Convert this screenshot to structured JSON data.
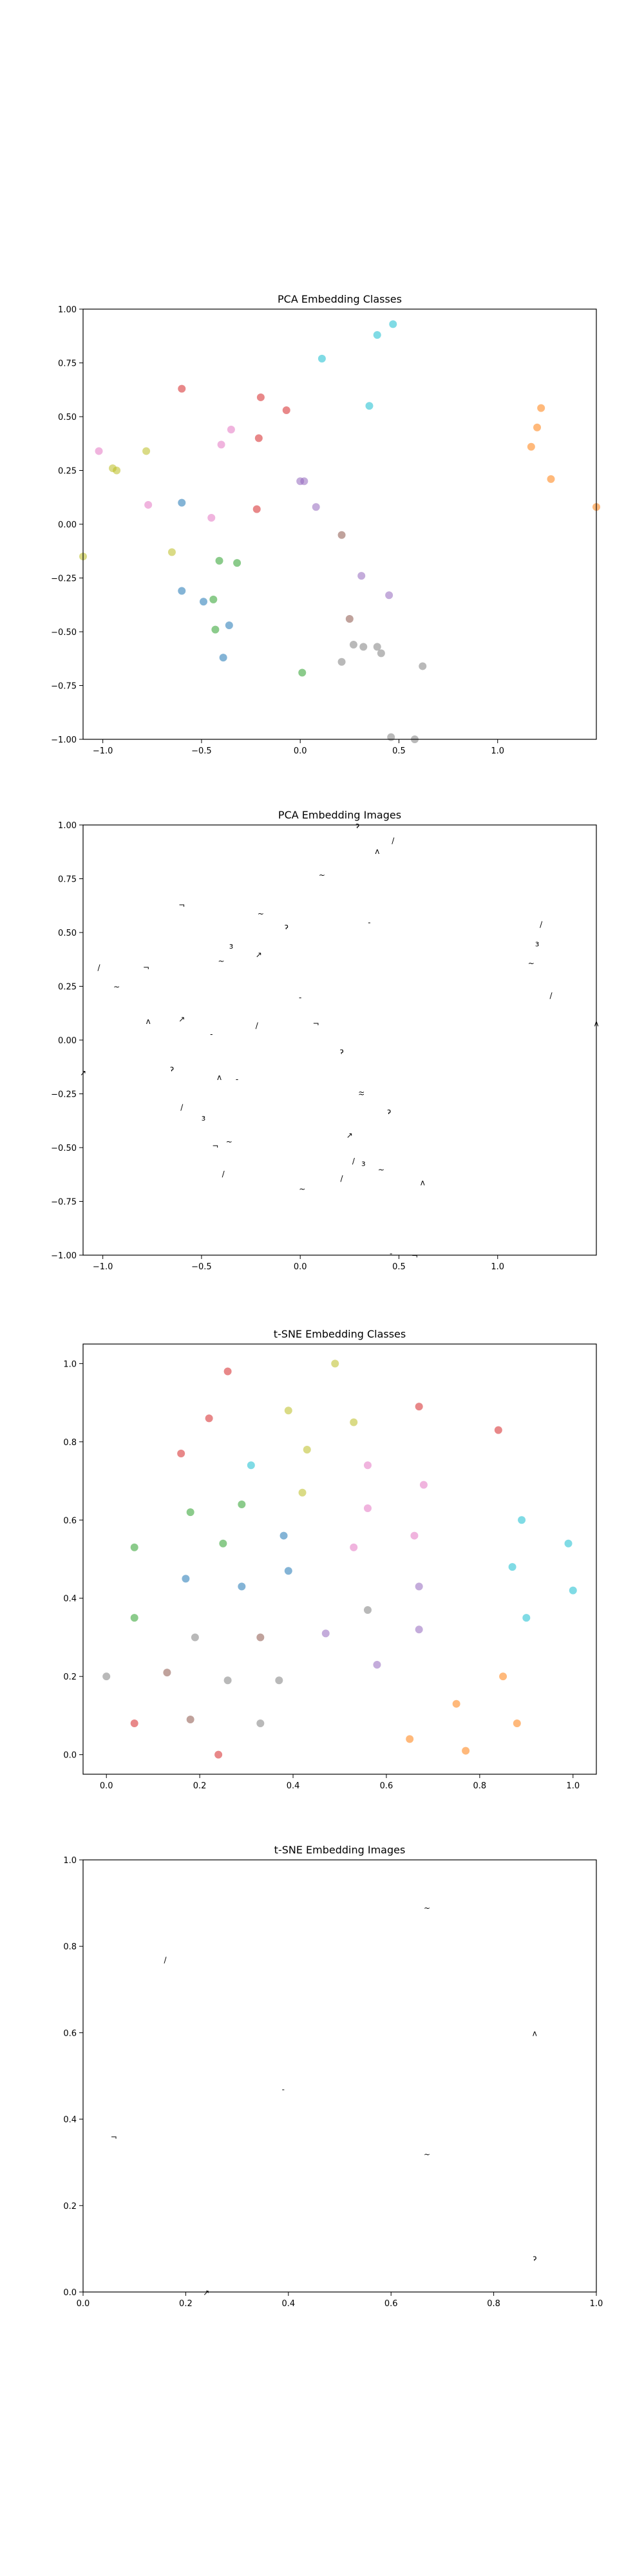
{
  "chart_data": [
    {
      "type": "scatter",
      "title": "PCA Embedding Classes",
      "xlim": [
        -1.1,
        1.5
      ],
      "ylim": [
        -1.0,
        1.0
      ],
      "xticks": [
        -1.0,
        -0.5,
        0.0,
        0.5,
        1.0
      ],
      "yticks": [
        -1.0,
        -0.75,
        -0.5,
        -0.25,
        0.0,
        0.25,
        0.5,
        0.75,
        1.0
      ],
      "tick_labels_x": [
        "−1.0",
        "−0.5",
        "0.0",
        "0.5",
        "1.0"
      ],
      "tick_labels_y": [
        "−1.00",
        "−0.75",
        "−0.50",
        "−0.25",
        "0.00",
        "0.25",
        "0.50",
        "0.75",
        "1.00"
      ],
      "points": [
        {
          "x": 0.11,
          "y": 0.77,
          "c": "#17becf"
        },
        {
          "x": 0.47,
          "y": 0.93,
          "c": "#17becf"
        },
        {
          "x": 0.39,
          "y": 0.88,
          "c": "#17becf"
        },
        {
          "x": 0.35,
          "y": 0.55,
          "c": "#17becf"
        },
        {
          "x": -0.6,
          "y": 0.63,
          "c": "#d62728"
        },
        {
          "x": -0.2,
          "y": 0.59,
          "c": "#d62728"
        },
        {
          "x": -0.07,
          "y": 0.53,
          "c": "#d62728"
        },
        {
          "x": -0.21,
          "y": 0.4,
          "c": "#d62728"
        },
        {
          "x": -0.22,
          "y": 0.07,
          "c": "#d62728"
        },
        {
          "x": -0.35,
          "y": 0.44,
          "c": "#e377c2"
        },
        {
          "x": -0.4,
          "y": 0.37,
          "c": "#e377c2"
        },
        {
          "x": -1.02,
          "y": 0.34,
          "c": "#e377c2"
        },
        {
          "x": -0.77,
          "y": 0.09,
          "c": "#e377c2"
        },
        {
          "x": -0.45,
          "y": 0.03,
          "c": "#e377c2"
        },
        {
          "x": -0.78,
          "y": 0.34,
          "c": "#bcbd22"
        },
        {
          "x": -0.95,
          "y": 0.26,
          "c": "#bcbd22"
        },
        {
          "x": -0.93,
          "y": 0.25,
          "c": "#bcbd22"
        },
        {
          "x": -0.65,
          "y": -0.13,
          "c": "#bcbd22"
        },
        {
          "x": -1.1,
          "y": -0.15,
          "c": "#bcbd22"
        },
        {
          "x": 1.22,
          "y": 0.54,
          "c": "#ff7f0e"
        },
        {
          "x": 1.2,
          "y": 0.45,
          "c": "#ff7f0e"
        },
        {
          "x": 1.17,
          "y": 0.36,
          "c": "#ff7f0e"
        },
        {
          "x": 1.27,
          "y": 0.21,
          "c": "#ff7f0e"
        },
        {
          "x": 1.5,
          "y": 0.08,
          "c": "#ff7f0e"
        },
        {
          "x": 0.0,
          "y": 0.2,
          "c": "#9467bd"
        },
        {
          "x": 0.02,
          "y": 0.2,
          "c": "#9467bd"
        },
        {
          "x": 0.08,
          "y": 0.08,
          "c": "#9467bd"
        },
        {
          "x": 0.31,
          "y": -0.24,
          "c": "#9467bd"
        },
        {
          "x": 0.45,
          "y": -0.33,
          "c": "#9467bd"
        },
        {
          "x": -0.6,
          "y": 0.1,
          "c": "#1f77b4"
        },
        {
          "x": -0.6,
          "y": -0.31,
          "c": "#1f77b4"
        },
        {
          "x": -0.49,
          "y": -0.36,
          "c": "#1f77b4"
        },
        {
          "x": -0.36,
          "y": -0.47,
          "c": "#1f77b4"
        },
        {
          "x": -0.39,
          "y": -0.62,
          "c": "#1f77b4"
        },
        {
          "x": -0.41,
          "y": -0.17,
          "c": "#2ca02c"
        },
        {
          "x": -0.32,
          "y": -0.18,
          "c": "#2ca02c"
        },
        {
          "x": -0.44,
          "y": -0.35,
          "c": "#2ca02c"
        },
        {
          "x": -0.43,
          "y": -0.49,
          "c": "#2ca02c"
        },
        {
          "x": 0.01,
          "y": -0.69,
          "c": "#2ca02c"
        },
        {
          "x": 0.21,
          "y": -0.05,
          "c": "#8c564b"
        },
        {
          "x": 0.25,
          "y": -0.44,
          "c": "#8c564b"
        },
        {
          "x": 0.27,
          "y": -0.56,
          "c": "#7f7f7f"
        },
        {
          "x": 0.32,
          "y": -0.57,
          "c": "#7f7f7f"
        },
        {
          "x": 0.39,
          "y": -0.57,
          "c": "#7f7f7f"
        },
        {
          "x": 0.41,
          "y": -0.6,
          "c": "#7f7f7f"
        },
        {
          "x": 0.21,
          "y": -0.64,
          "c": "#7f7f7f"
        },
        {
          "x": 0.62,
          "y": -0.66,
          "c": "#7f7f7f"
        },
        {
          "x": 0.46,
          "y": -0.99,
          "c": "#7f7f7f"
        },
        {
          "x": 0.58,
          "y": -1.0,
          "c": "#7f7f7f"
        }
      ]
    },
    {
      "type": "scatter",
      "title": "PCA Embedding Images",
      "xlim": [
        -1.1,
        1.5
      ],
      "ylim": [
        -1.0,
        1.0
      ],
      "xticks": [
        -1.0,
        -0.5,
        0.0,
        0.5,
        1.0
      ],
      "yticks": [
        -1.0,
        -0.75,
        -0.5,
        -0.25,
        0.0,
        0.25,
        0.5,
        0.75,
        1.0
      ],
      "tick_labels_x": [
        "−1.0",
        "−0.5",
        "0.0",
        "0.5",
        "1.0"
      ],
      "tick_labels_y": [
        "−1.00",
        "−0.75",
        "−0.50",
        "−0.25",
        "0.00",
        "0.25",
        "0.50",
        "0.75",
        "1.00"
      ],
      "marker_text": [
        "~",
        "/",
        "ʌ",
        "-",
        "¬",
        "~",
        "ɂ",
        "↗",
        "/",
        "ɜ"
      ],
      "points": [
        {
          "x": 0.11,
          "y": 0.77
        },
        {
          "x": 0.47,
          "y": 0.93
        },
        {
          "x": 0.39,
          "y": 0.88
        },
        {
          "x": 0.35,
          "y": 0.55
        },
        {
          "x": -0.6,
          "y": 0.63
        },
        {
          "x": -0.2,
          "y": 0.59
        },
        {
          "x": -0.07,
          "y": 0.53
        },
        {
          "x": -0.21,
          "y": 0.4
        },
        {
          "x": -0.22,
          "y": 0.07
        },
        {
          "x": -0.35,
          "y": 0.44
        },
        {
          "x": -0.4,
          "y": 0.37
        },
        {
          "x": -1.02,
          "y": 0.34
        },
        {
          "x": -0.77,
          "y": 0.09
        },
        {
          "x": -0.45,
          "y": 0.03
        },
        {
          "x": -0.78,
          "y": 0.34
        },
        {
          "x": -0.93,
          "y": 0.25
        },
        {
          "x": -0.65,
          "y": -0.13
        },
        {
          "x": -1.1,
          "y": -0.15
        },
        {
          "x": 1.22,
          "y": 0.54
        },
        {
          "x": 1.2,
          "y": 0.45
        },
        {
          "x": 1.17,
          "y": 0.36
        },
        {
          "x": 1.27,
          "y": 0.21
        },
        {
          "x": 1.5,
          "y": 0.08
        },
        {
          "x": 0.0,
          "y": 0.2
        },
        {
          "x": 0.08,
          "y": 0.08
        },
        {
          "x": 0.31,
          "y": -0.24
        },
        {
          "x": 0.45,
          "y": -0.33
        },
        {
          "x": -0.6,
          "y": 0.1
        },
        {
          "x": -0.6,
          "y": -0.31
        },
        {
          "x": -0.49,
          "y": -0.36
        },
        {
          "x": -0.36,
          "y": -0.47
        },
        {
          "x": -0.39,
          "y": -0.62
        },
        {
          "x": -0.41,
          "y": -0.17
        },
        {
          "x": -0.32,
          "y": -0.18
        },
        {
          "x": -0.43,
          "y": -0.49
        },
        {
          "x": 0.01,
          "y": -0.69
        },
        {
          "x": 0.21,
          "y": -0.05
        },
        {
          "x": 0.25,
          "y": -0.44
        },
        {
          "x": 0.27,
          "y": -0.56
        },
        {
          "x": 0.32,
          "y": -0.57
        },
        {
          "x": 0.41,
          "y": -0.6
        },
        {
          "x": 0.21,
          "y": -0.64
        },
        {
          "x": 0.62,
          "y": -0.66
        },
        {
          "x": 0.46,
          "y": -0.99
        },
        {
          "x": 0.58,
          "y": -1.0
        },
        {
          "x": 0.31,
          "y": -0.25
        },
        {
          "x": 0.29,
          "y": 1.0
        }
      ]
    },
    {
      "type": "scatter",
      "title": "t-SNE Embedding Classes",
      "xlim": [
        -0.05,
        1.05
      ],
      "ylim": [
        -0.05,
        1.05
      ],
      "xticks": [
        0.0,
        0.2,
        0.4,
        0.6,
        0.8,
        1.0
      ],
      "yticks": [
        0.0,
        0.2,
        0.4,
        0.6,
        0.8,
        1.0
      ],
      "tick_labels_x": [
        "0.0",
        "0.2",
        "0.4",
        "0.6",
        "0.8",
        "1.0"
      ],
      "tick_labels_y": [
        "0.0",
        "0.2",
        "0.4",
        "0.6",
        "0.8",
        "1.0"
      ],
      "points": [
        {
          "x": 0.26,
          "y": 0.98,
          "c": "#d62728"
        },
        {
          "x": 0.22,
          "y": 0.86,
          "c": "#d62728"
        },
        {
          "x": 0.16,
          "y": 0.77,
          "c": "#d62728"
        },
        {
          "x": 0.67,
          "y": 0.89,
          "c": "#d62728"
        },
        {
          "x": 0.84,
          "y": 0.83,
          "c": "#d62728"
        },
        {
          "x": 0.24,
          "y": 0.0,
          "c": "#d62728"
        },
        {
          "x": 0.06,
          "y": 0.08,
          "c": "#d62728"
        },
        {
          "x": 0.49,
          "y": 1.0,
          "c": "#bcbd22"
        },
        {
          "x": 0.39,
          "y": 0.88,
          "c": "#bcbd22"
        },
        {
          "x": 0.53,
          "y": 0.85,
          "c": "#bcbd22"
        },
        {
          "x": 0.43,
          "y": 0.78,
          "c": "#bcbd22"
        },
        {
          "x": 0.42,
          "y": 0.67,
          "c": "#bcbd22"
        },
        {
          "x": 0.31,
          "y": 0.74,
          "c": "#17becf"
        },
        {
          "x": 0.87,
          "y": 0.48,
          "c": "#17becf"
        },
        {
          "x": 0.89,
          "y": 0.6,
          "c": "#17becf"
        },
        {
          "x": 0.99,
          "y": 0.54,
          "c": "#17becf"
        },
        {
          "x": 1.0,
          "y": 0.42,
          "c": "#17becf"
        },
        {
          "x": 0.9,
          "y": 0.35,
          "c": "#17becf"
        },
        {
          "x": 0.18,
          "y": 0.62,
          "c": "#2ca02c"
        },
        {
          "x": 0.29,
          "y": 0.64,
          "c": "#2ca02c"
        },
        {
          "x": 0.06,
          "y": 0.53,
          "c": "#2ca02c"
        },
        {
          "x": 0.25,
          "y": 0.54,
          "c": "#2ca02c"
        },
        {
          "x": 0.06,
          "y": 0.35,
          "c": "#2ca02c"
        },
        {
          "x": 0.56,
          "y": 0.74,
          "c": "#e377c2"
        },
        {
          "x": 0.68,
          "y": 0.69,
          "c": "#e377c2"
        },
        {
          "x": 0.56,
          "y": 0.63,
          "c": "#e377c2"
        },
        {
          "x": 0.66,
          "y": 0.56,
          "c": "#e377c2"
        },
        {
          "x": 0.53,
          "y": 0.53,
          "c": "#e377c2"
        },
        {
          "x": 0.38,
          "y": 0.56,
          "c": "#1f77b4"
        },
        {
          "x": 0.39,
          "y": 0.47,
          "c": "#1f77b4"
        },
        {
          "x": 0.17,
          "y": 0.45,
          "c": "#1f77b4"
        },
        {
          "x": 0.29,
          "y": 0.43,
          "c": "#1f77b4"
        },
        {
          "x": 0.67,
          "y": 0.43,
          "c": "#9467bd"
        },
        {
          "x": 0.67,
          "y": 0.32,
          "c": "#9467bd"
        },
        {
          "x": 0.47,
          "y": 0.31,
          "c": "#9467bd"
        },
        {
          "x": 0.58,
          "y": 0.23,
          "c": "#9467bd"
        },
        {
          "x": 0.56,
          "y": 0.37,
          "c": "#7f7f7f"
        },
        {
          "x": 0.19,
          "y": 0.3,
          "c": "#7f7f7f"
        },
        {
          "x": 0.0,
          "y": 0.2,
          "c": "#7f7f7f"
        },
        {
          "x": 0.26,
          "y": 0.19,
          "c": "#7f7f7f"
        },
        {
          "x": 0.37,
          "y": 0.19,
          "c": "#7f7f7f"
        },
        {
          "x": 0.33,
          "y": 0.08,
          "c": "#7f7f7f"
        },
        {
          "x": 0.13,
          "y": 0.21,
          "c": "#8c564b"
        },
        {
          "x": 0.18,
          "y": 0.09,
          "c": "#8c564b"
        },
        {
          "x": 0.33,
          "y": 0.3,
          "c": "#8c564b"
        },
        {
          "x": 0.85,
          "y": 0.2,
          "c": "#ff7f0e"
        },
        {
          "x": 0.75,
          "y": 0.13,
          "c": "#ff7f0e"
        },
        {
          "x": 0.88,
          "y": 0.08,
          "c": "#ff7f0e"
        },
        {
          "x": 0.65,
          "y": 0.04,
          "c": "#ff7f0e"
        },
        {
          "x": 0.77,
          "y": 0.01,
          "c": "#ff7f0e"
        }
      ]
    },
    {
      "type": "scatter",
      "title": "t-SNE Embedding Images",
      "xlim": [
        0.0,
        1.0
      ],
      "ylim": [
        0.0,
        1.0
      ],
      "xticks": [
        0.0,
        0.2,
        0.4,
        0.6,
        0.8,
        1.0
      ],
      "yticks": [
        0.0,
        0.2,
        0.4,
        0.6,
        0.8,
        1.0
      ],
      "tick_labels_x": [
        "0.0",
        "0.2",
        "0.4",
        "0.6",
        "0.8",
        "1.0"
      ],
      "tick_labels_y": [
        "0.0",
        "0.2",
        "0.4",
        "0.6",
        "0.8",
        "1.0"
      ],
      "marker_text": [
        "~",
        "/",
        "ʌ",
        "-",
        "¬",
        "~",
        "ɂ",
        "↗"
      ],
      "points": [
        {
          "x": 0.67,
          "y": 0.89
        },
        {
          "x": 0.16,
          "y": 0.77
        },
        {
          "x": 0.88,
          "y": 0.6
        },
        {
          "x": 0.39,
          "y": 0.47
        },
        {
          "x": 0.06,
          "y": 0.36
        },
        {
          "x": 0.67,
          "y": 0.32
        },
        {
          "x": 0.88,
          "y": 0.08
        },
        {
          "x": 0.24,
          "y": 0.0
        }
      ]
    }
  ]
}
